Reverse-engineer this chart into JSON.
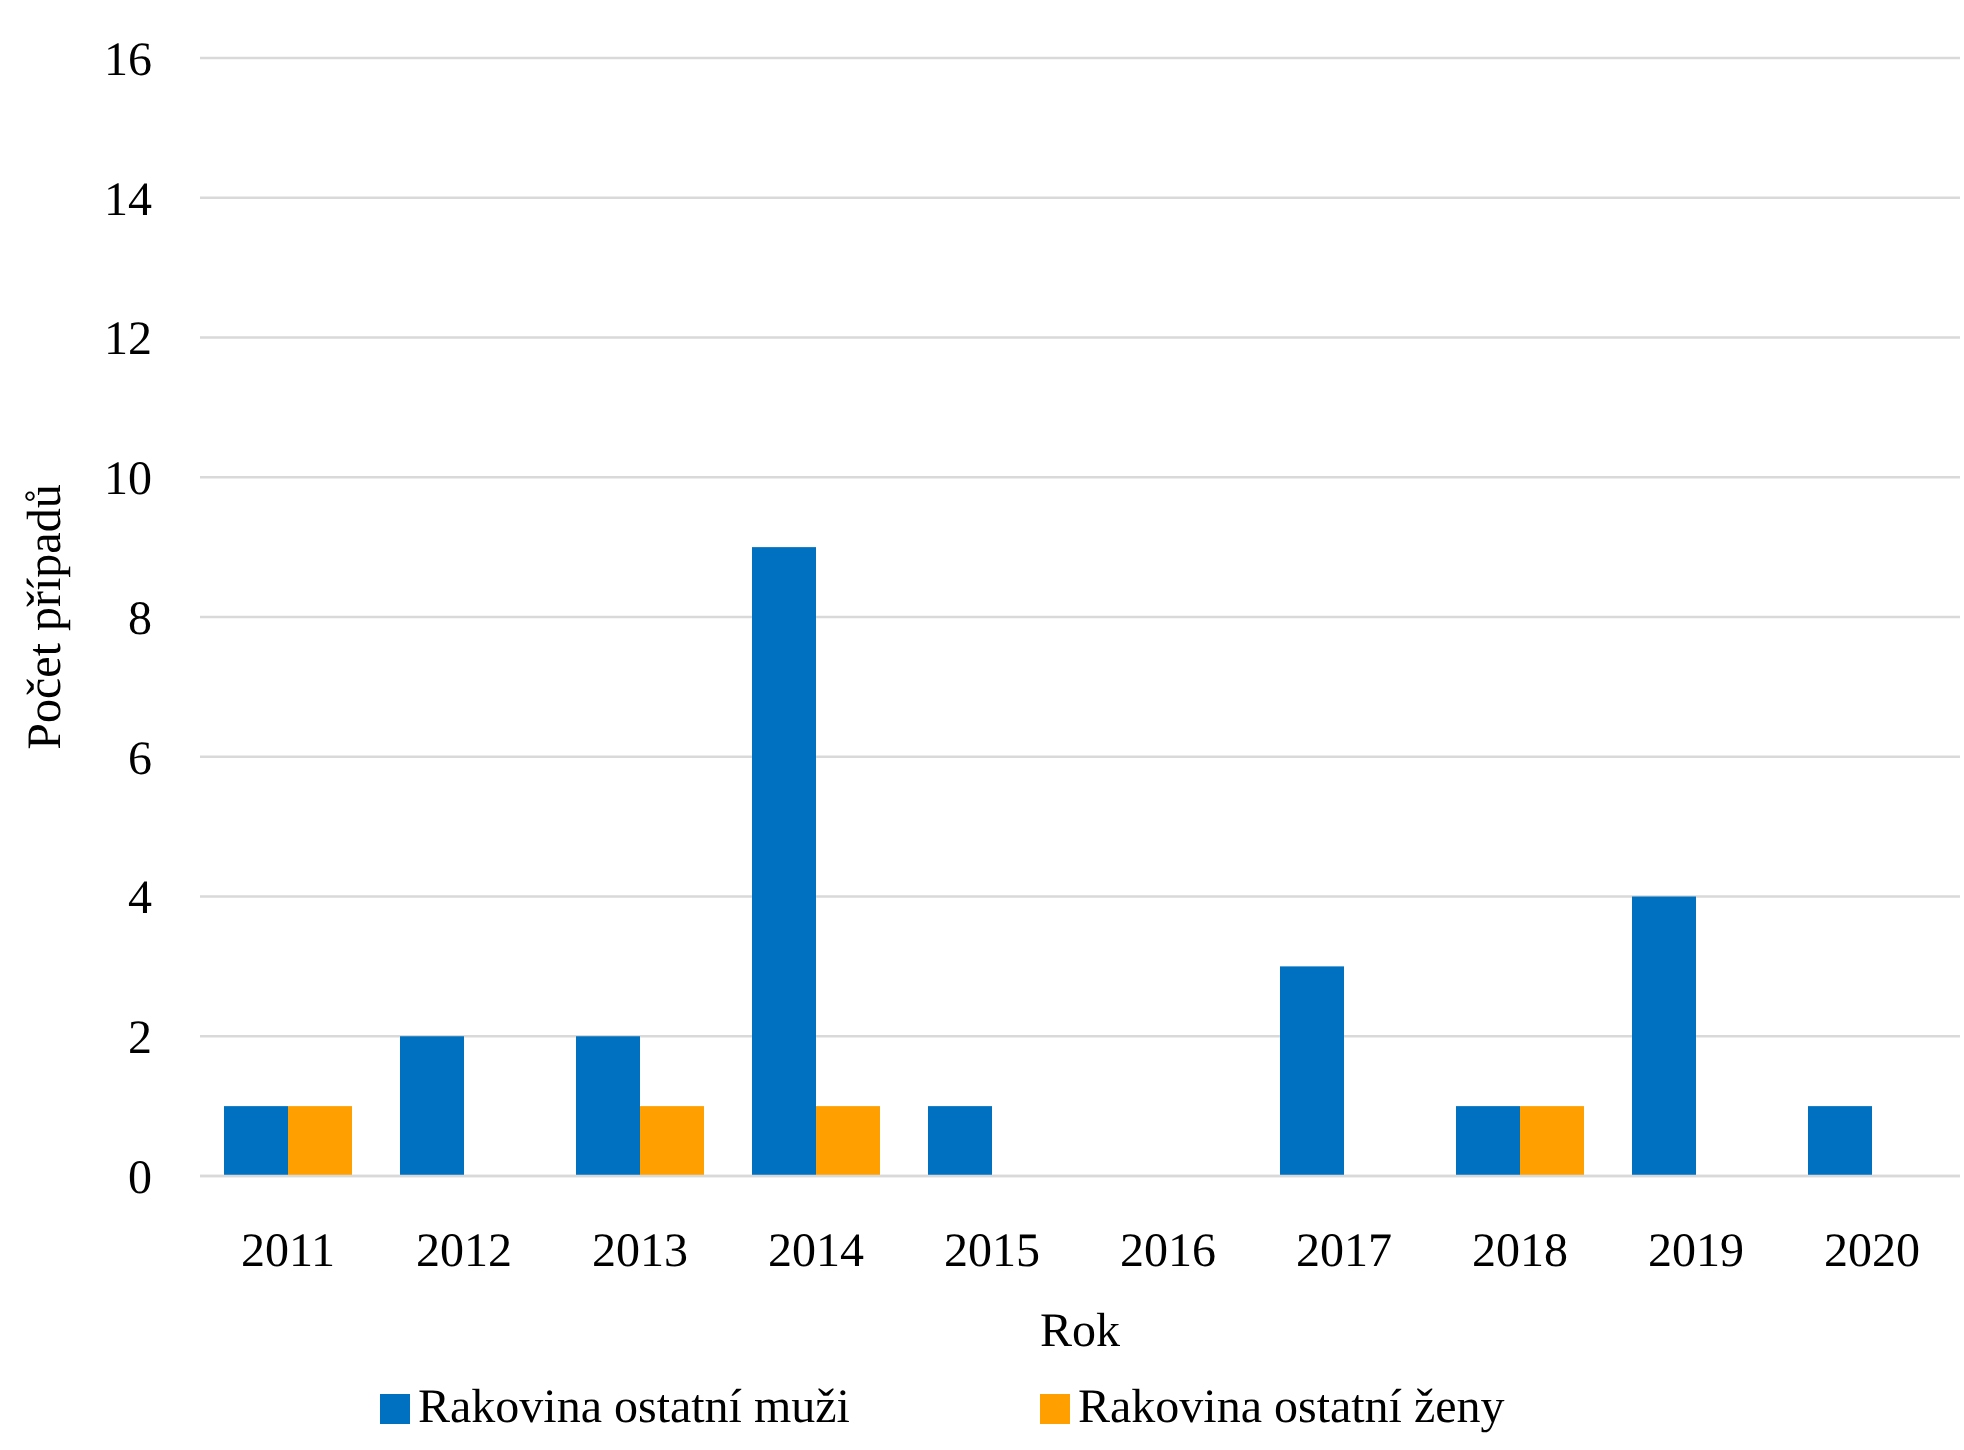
{
  "chart_data": {
    "type": "bar",
    "xlabel": "Rok",
    "ylabel": "Počet případů",
    "categories": [
      "2011",
      "2012",
      "2013",
      "2014",
      "2015",
      "2016",
      "2017",
      "2018",
      "2019",
      "2020"
    ],
    "series": [
      {
        "name": "Rakovina ostatní muži",
        "color": "#0070c0",
        "values": [
          1,
          2,
          2,
          9,
          1,
          0,
          3,
          1,
          4,
          1
        ]
      },
      {
        "name": "Rakovina ostatní ženy",
        "color": "#ffa000",
        "values": [
          1,
          0,
          1,
          1,
          0,
          0,
          0,
          1,
          0,
          0
        ]
      }
    ],
    "ylim": [
      0,
      16
    ],
    "yticks": [
      0,
      2,
      4,
      6,
      8,
      10,
      12,
      14,
      16
    ],
    "grid": "y",
    "legend": "bottom"
  }
}
